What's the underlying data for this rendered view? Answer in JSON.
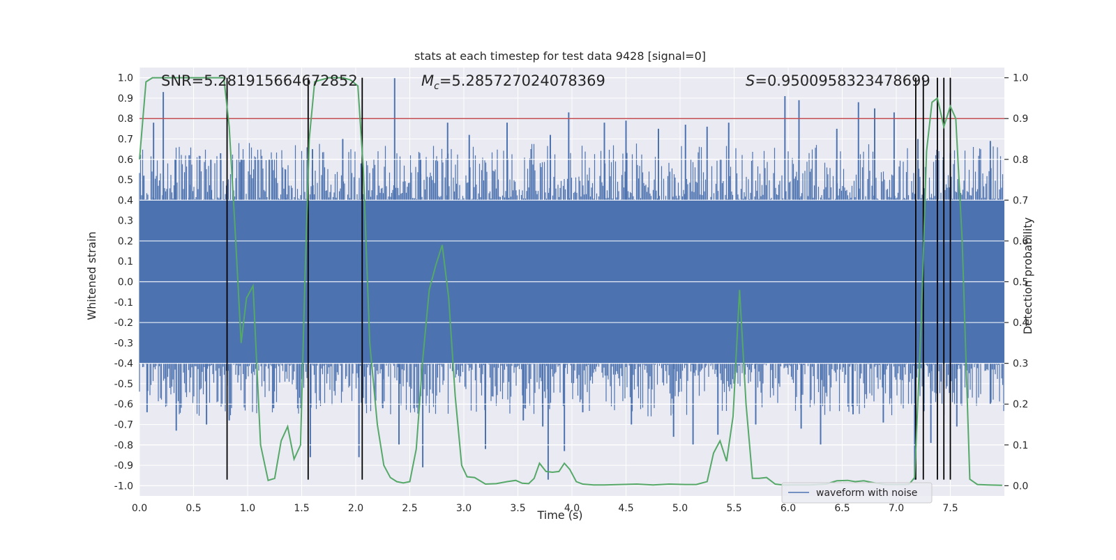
{
  "chart_data": {
    "type": "line",
    "title": "stats at each timestep for test data 9428 [signal=0]",
    "xlabel": "Time (s)",
    "ylabel_left": "Whitened strain",
    "ylabel_right": "Detection probability",
    "xlim": [
      0,
      8
    ],
    "ylim_left": [
      -1.05,
      1.05
    ],
    "ylim_right": [
      -0.025,
      1.025
    ],
    "x_ticks": [
      "0.0",
      "0.5",
      "1.0",
      "1.5",
      "2.0",
      "2.5",
      "3.0",
      "3.5",
      "4.0",
      "4.5",
      "5.0",
      "5.5",
      "6.0",
      "6.5",
      "7.0",
      "7.5"
    ],
    "y_left_ticks": [
      "1.0",
      "0.9",
      "0.8",
      "0.7",
      "0.6",
      "0.5",
      "0.4",
      "0.3",
      "0.2",
      "0.1",
      "0.0",
      "-0.1",
      "-0.2",
      "-0.3",
      "-0.4",
      "-0.5",
      "-0.6",
      "-0.7",
      "-0.8",
      "-0.9",
      "-1.0"
    ],
    "y_right_ticks": [
      "1.0",
      "0.9",
      "0.8",
      "0.7",
      "0.6",
      "0.5",
      "0.4",
      "0.3",
      "0.2",
      "0.1",
      "0.0"
    ],
    "grid": true,
    "legend": {
      "position": "bottom-right",
      "entries": [
        "waveform with noise"
      ]
    },
    "annotations": {
      "snr": "SNR=5.281915664672852",
      "mc_symbol": "M",
      "mc_sub": "c",
      "mc_value": "=5.285727024078369",
      "s_symbol": "S",
      "s_value": "=0.9500958323478699"
    },
    "threshold": {
      "value": 0.9,
      "axis": "right",
      "color": "#c44e52"
    },
    "vertical_lines": {
      "x": [
        0.81,
        1.56,
        2.06,
        7.18,
        7.25,
        7.38,
        7.44,
        7.5
      ],
      "ymin": -0.97,
      "ymax": 1.0
    },
    "series": [
      {
        "name": "waveform with noise",
        "color": "#4c72b0",
        "kind": "noise",
        "band": [
          -0.4,
          0.4
        ],
        "spikes": [
          {
            "x": 0.04,
            "y": 0.52
          },
          {
            "x": 0.13,
            "y": 0.78
          },
          {
            "x": 0.22,
            "y": 0.93
          },
          {
            "x": 0.33,
            "y": 0.6
          },
          {
            "x": 0.46,
            "y": 0.62
          },
          {
            "x": 0.66,
            "y": 0.6
          },
          {
            "x": 0.75,
            "y": 0.63
          },
          {
            "x": 0.94,
            "y": 0.6
          },
          {
            "x": 1.2,
            "y": 0.6
          },
          {
            "x": 1.35,
            "y": 0.55
          },
          {
            "x": 1.6,
            "y": 0.65
          },
          {
            "x": 1.88,
            "y": 0.7
          },
          {
            "x": 2.05,
            "y": 0.58
          },
          {
            "x": 2.36,
            "y": 1.0
          },
          {
            "x": 2.6,
            "y": 0.6
          },
          {
            "x": 2.85,
            "y": 0.78
          },
          {
            "x": 3.05,
            "y": 0.72
          },
          {
            "x": 3.4,
            "y": 0.78
          },
          {
            "x": 3.8,
            "y": 0.72
          },
          {
            "x": 3.97,
            "y": 0.83
          },
          {
            "x": 4.3,
            "y": 0.78
          },
          {
            "x": 4.5,
            "y": 0.79
          },
          {
            "x": 4.8,
            "y": 0.75
          },
          {
            "x": 5.05,
            "y": 0.77
          },
          {
            "x": 5.25,
            "y": 0.76
          },
          {
            "x": 5.45,
            "y": 0.78
          },
          {
            "x": 5.97,
            "y": 0.91
          },
          {
            "x": 6.1,
            "y": 0.89
          },
          {
            "x": 6.45,
            "y": 0.75
          },
          {
            "x": 6.65,
            "y": 0.88
          },
          {
            "x": 6.8,
            "y": 0.85
          },
          {
            "x": 6.98,
            "y": 0.83
          },
          {
            "x": 7.2,
            "y": 0.7
          },
          {
            "x": 7.5,
            "y": 0.63
          },
          {
            "x": 7.87,
            "y": 0.69
          },
          {
            "x": 0.07,
            "y": -0.64
          },
          {
            "x": 0.34,
            "y": -0.73
          },
          {
            "x": 0.62,
            "y": -0.7
          },
          {
            "x": 0.83,
            "y": -0.68
          },
          {
            "x": 1.24,
            "y": -0.62
          },
          {
            "x": 1.58,
            "y": -0.86
          },
          {
            "x": 2.03,
            "y": -0.86
          },
          {
            "x": 2.25,
            "y": -0.62
          },
          {
            "x": 2.4,
            "y": -0.8
          },
          {
            "x": 2.62,
            "y": -0.91
          },
          {
            "x": 3.2,
            "y": -0.82
          },
          {
            "x": 3.55,
            "y": -0.68
          },
          {
            "x": 3.73,
            "y": -0.71
          },
          {
            "x": 3.78,
            "y": -0.97
          },
          {
            "x": 3.93,
            "y": -0.83
          },
          {
            "x": 4.1,
            "y": -0.64
          },
          {
            "x": 4.55,
            "y": -0.7
          },
          {
            "x": 4.94,
            "y": -0.76
          },
          {
            "x": 5.12,
            "y": -0.8
          },
          {
            "x": 5.35,
            "y": -0.75
          },
          {
            "x": 5.7,
            "y": -0.7
          },
          {
            "x": 6.12,
            "y": -0.72
          },
          {
            "x": 6.3,
            "y": -0.8
          },
          {
            "x": 6.6,
            "y": -0.65
          },
          {
            "x": 6.88,
            "y": -0.69
          },
          {
            "x": 7.17,
            "y": -0.97
          },
          {
            "x": 7.32,
            "y": -0.79
          },
          {
            "x": 7.56,
            "y": -0.71
          },
          {
            "x": 7.87,
            "y": -0.6
          }
        ]
      },
      {
        "name": "detection probability",
        "color": "#55a868",
        "axis": "right",
        "x": [
          0.0,
          0.06,
          0.12,
          0.2,
          0.3,
          0.4,
          0.5,
          0.6,
          0.7,
          0.78,
          0.83,
          0.88,
          0.94,
          0.99,
          1.05,
          1.12,
          1.19,
          1.25,
          1.31,
          1.37,
          1.43,
          1.49,
          1.53,
          1.57,
          1.62,
          1.68,
          1.75,
          1.82,
          1.88,
          1.95,
          2.02,
          2.07,
          2.13,
          2.2,
          2.26,
          2.32,
          2.38,
          2.44,
          2.5,
          2.56,
          2.62,
          2.68,
          2.74,
          2.8,
          2.86,
          2.92,
          2.98,
          3.03,
          3.1,
          3.2,
          3.3,
          3.4,
          3.48,
          3.54,
          3.6,
          3.65,
          3.7,
          3.76,
          3.82,
          3.88,
          3.93,
          3.98,
          4.04,
          4.1,
          4.2,
          4.3,
          4.45,
          4.6,
          4.75,
          4.9,
          5.05,
          5.15,
          5.25,
          5.31,
          5.37,
          5.43,
          5.49,
          5.55,
          5.61,
          5.67,
          5.73,
          5.8,
          5.88,
          5.95,
          6.05,
          6.2,
          6.35,
          6.45,
          6.55,
          6.62,
          6.7,
          6.8,
          6.9,
          7.0,
          7.08,
          7.12,
          7.17,
          7.23,
          7.28,
          7.33,
          7.38,
          7.44,
          7.5,
          7.55,
          7.61,
          7.68,
          7.75,
          7.85,
          7.98
        ],
        "y": [
          0.8,
          0.99,
          1.0,
          1.0,
          1.0,
          1.0,
          1.0,
          1.0,
          1.0,
          1.0,
          0.88,
          0.65,
          0.35,
          0.46,
          0.49,
          0.1,
          0.013,
          0.018,
          0.11,
          0.145,
          0.065,
          0.1,
          0.5,
          0.85,
          0.99,
          0.995,
          1.0,
          1.0,
          1.0,
          0.995,
          0.98,
          0.78,
          0.35,
          0.15,
          0.05,
          0.02,
          0.01,
          0.007,
          0.01,
          0.09,
          0.31,
          0.48,
          0.54,
          0.59,
          0.46,
          0.22,
          0.05,
          0.022,
          0.02,
          0.004,
          0.005,
          0.01,
          0.013,
          0.006,
          0.005,
          0.018,
          0.055,
          0.035,
          0.033,
          0.035,
          0.055,
          0.04,
          0.01,
          0.004,
          0.002,
          0.002,
          0.003,
          0.004,
          0.002,
          0.004,
          0.003,
          0.003,
          0.01,
          0.08,
          0.11,
          0.06,
          0.17,
          0.48,
          0.2,
          0.018,
          0.018,
          0.02,
          0.004,
          0.002,
          0.002,
          0.002,
          0.004,
          0.012,
          0.013,
          0.01,
          0.012,
          0.007,
          0.003,
          0.003,
          0.003,
          0.004,
          0.02,
          0.4,
          0.82,
          0.94,
          0.95,
          0.88,
          0.93,
          0.9,
          0.6,
          0.016,
          0.003,
          0.002,
          0.001
        ]
      }
    ]
  }
}
